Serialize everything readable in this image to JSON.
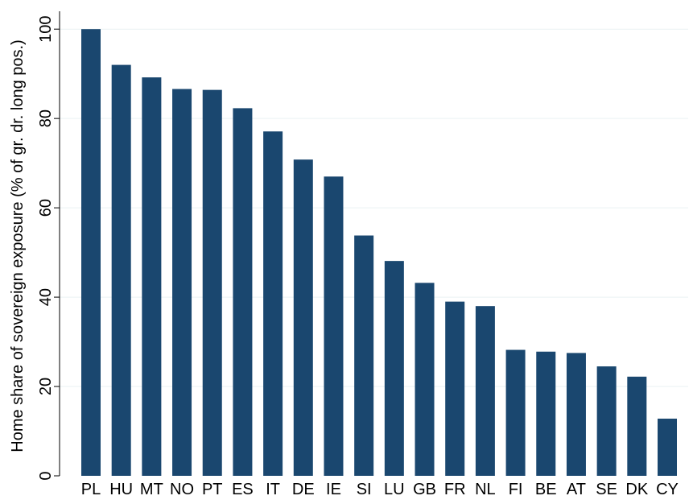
{
  "chart_data": {
    "type": "bar",
    "categories": [
      "PL",
      "HU",
      "MT",
      "NO",
      "PT",
      "ES",
      "IT",
      "DE",
      "IE",
      "SI",
      "LU",
      "GB",
      "FR",
      "NL",
      "FI",
      "BE",
      "AT",
      "SE",
      "DK",
      "CY"
    ],
    "values": [
      100,
      92,
      89.2,
      86.6,
      86.4,
      82.3,
      77.1,
      70.8,
      67,
      53.8,
      48.1,
      43.2,
      39,
      38,
      28.2,
      27.8,
      27.5,
      24.5,
      22.2,
      12.8
    ],
    "title": "",
    "xlabel": "",
    "ylabel": "Home share of sovereign exposure (% of gr. dr. long pos.)",
    "ylim": [
      0,
      104
    ],
    "yticks": [
      0,
      20,
      40,
      60,
      80,
      100
    ],
    "grid": true,
    "bar_color": "#1a476f",
    "grid_color": "#eaf2f3"
  }
}
